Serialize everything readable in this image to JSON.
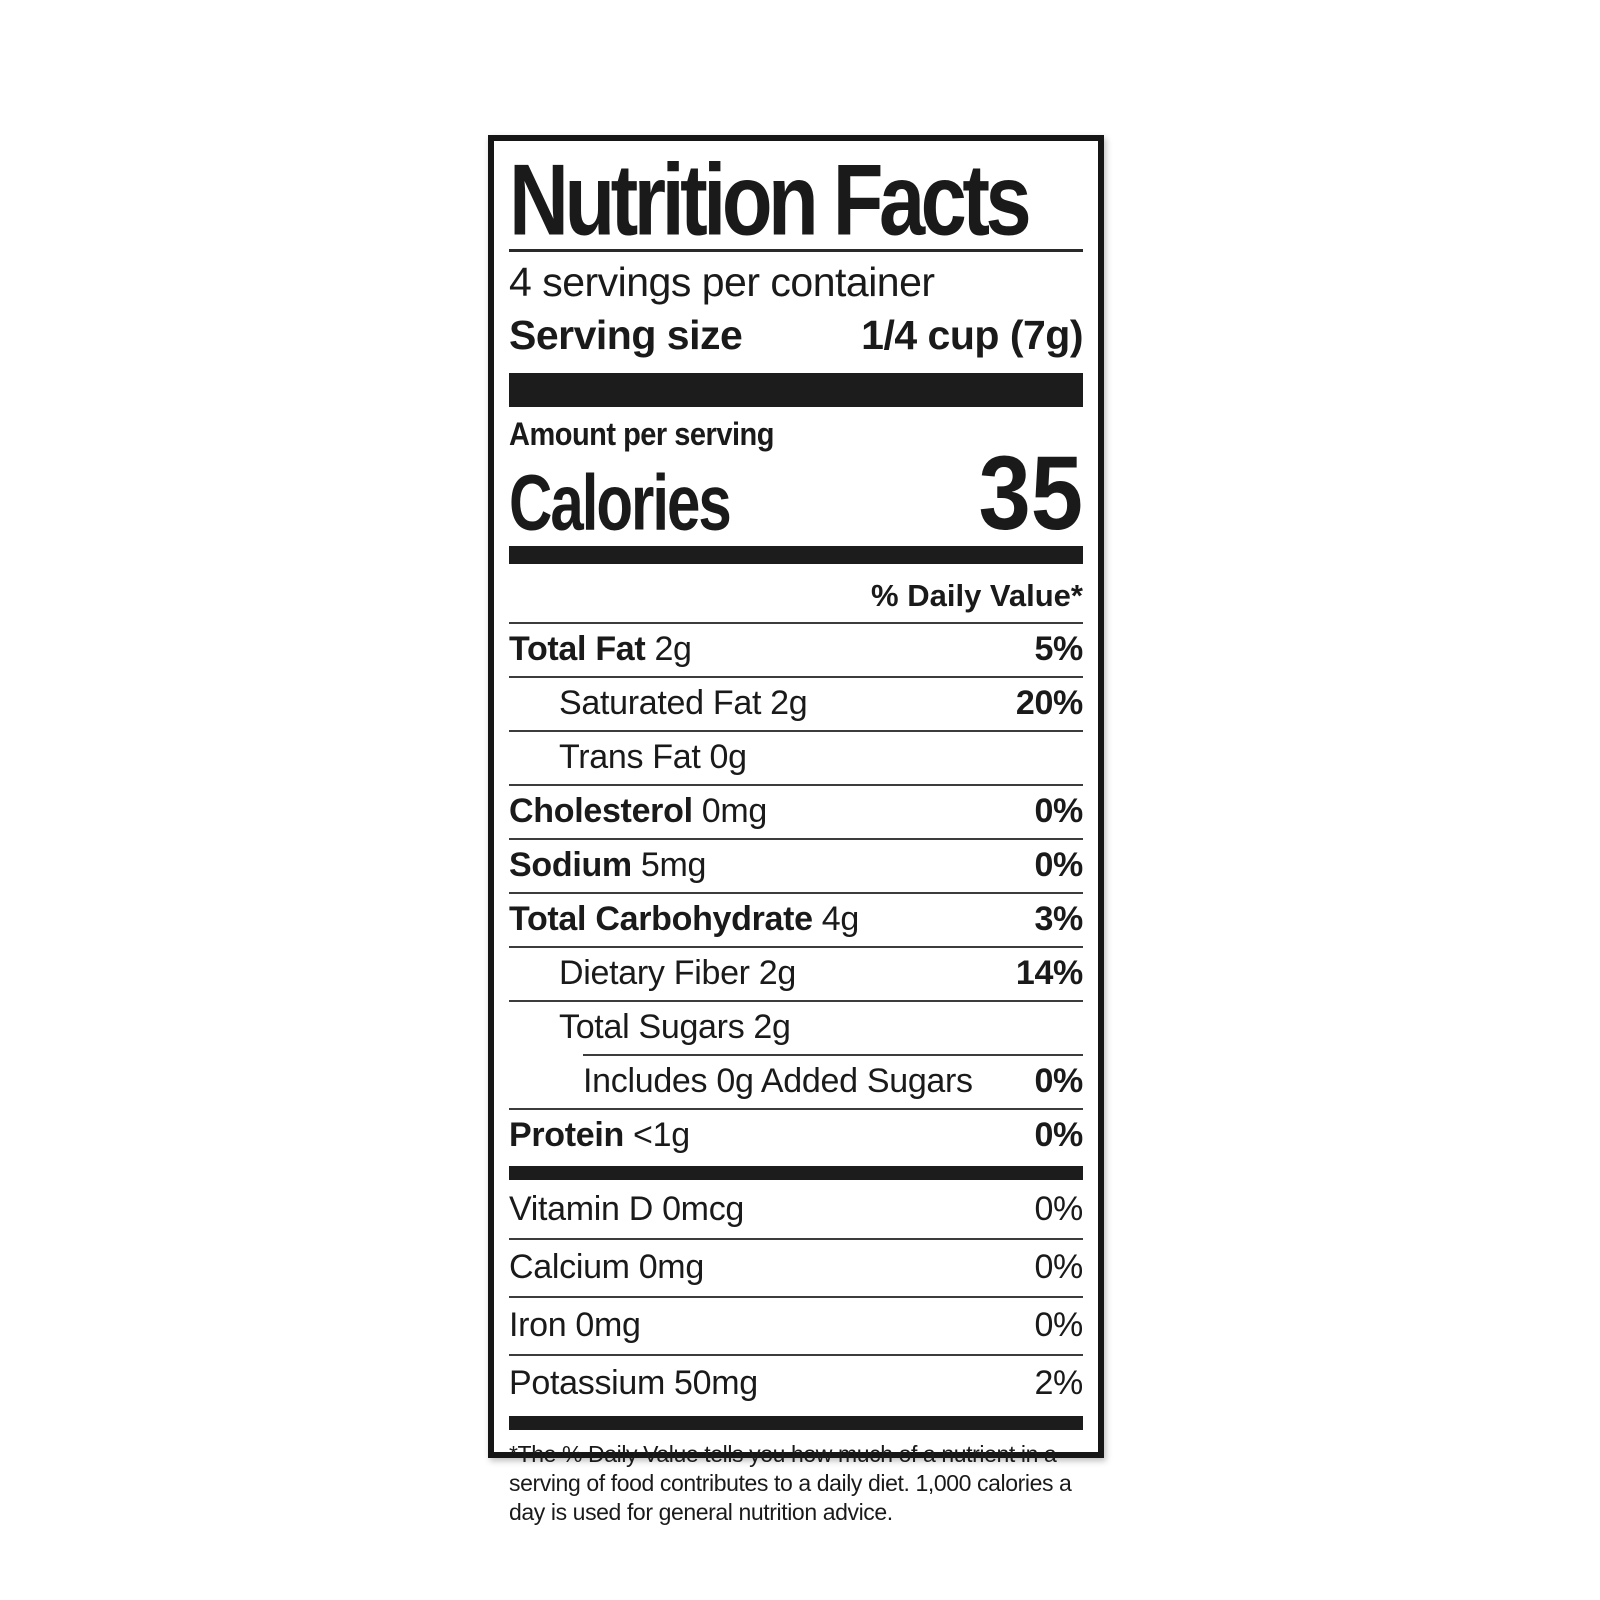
{
  "colors": {
    "text": "#1a1a1a",
    "border": "#161616",
    "bars": "#1c1c1c",
    "background_silver": "#e3e3e3",
    "page_background": "#ffffff"
  },
  "label": {
    "title": "Nutrition Facts",
    "servings_per_container": "4 servings per container",
    "serving_size_label": "Serving size",
    "serving_size_value": "1/4 cup (7g)",
    "amount_per_serving": "Amount per serving",
    "calories_label": "Calories",
    "calories_value": "35",
    "daily_value_header": "% Daily Value*",
    "nutrients": [
      {
        "name": "Total Fat",
        "amount": "2g",
        "dv": "5%"
      },
      {
        "name": "Saturated Fat",
        "amount": "2g",
        "dv": "20%"
      },
      {
        "name": "Trans Fat",
        "amount": "0g",
        "dv": ""
      },
      {
        "name": "Cholesterol",
        "amount": "0mg",
        "dv": "0%"
      },
      {
        "name": "Sodium",
        "amount": "5mg",
        "dv": "0%"
      },
      {
        "name": "Total Carbohydrate",
        "amount": "4g",
        "dv": "3%"
      },
      {
        "name": "Dietary Fiber",
        "amount": "2g",
        "dv": "14%"
      },
      {
        "name": "Total Sugars",
        "amount": "2g",
        "dv": ""
      },
      {
        "name": "Includes 0g Added Sugars",
        "amount": "",
        "dv": "0%"
      },
      {
        "name": "Protein",
        "amount": "<1g",
        "dv": "0%"
      }
    ],
    "micronutrients": [
      {
        "name": "Vitamin D",
        "amount": "0mcg",
        "dv": "0%"
      },
      {
        "name": "Calcium",
        "amount": "0mg",
        "dv": "0%"
      },
      {
        "name": "Iron",
        "amount": "0mg",
        "dv": "0%"
      },
      {
        "name": "Potassium",
        "amount": "50mg",
        "dv": "2%"
      }
    ],
    "footnote": "*The % Daily Value tells you how much of a nutrient in a serving of food contributes to a daily diet. 1,000 calories a day is used for general nutrition advice."
  }
}
